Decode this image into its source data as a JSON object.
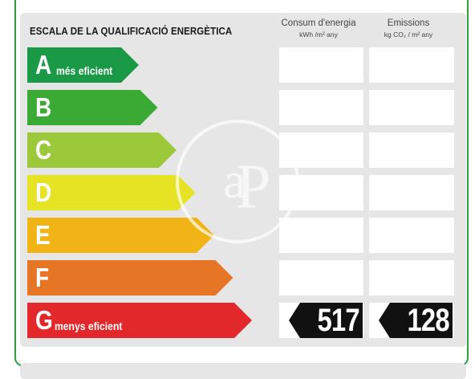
{
  "title": "ESCALA DE LA QUALIFICACIÓ ENERGÈTICA",
  "columns": {
    "consumption": {
      "label": "Consum d'energia",
      "unit": "kWh /m² any"
    },
    "emissions": {
      "label": "Emissions",
      "unit": "kg CO₂ / m² any"
    }
  },
  "ratings": [
    {
      "letter": "A",
      "caption": "més eficient",
      "color": "#1a9a47"
    },
    {
      "letter": "B",
      "caption": "",
      "color": "#3aaa35"
    },
    {
      "letter": "C",
      "caption": "",
      "color": "#9bc93a"
    },
    {
      "letter": "D",
      "caption": "",
      "color": "#e5e323"
    },
    {
      "letter": "E",
      "caption": "",
      "color": "#f1b417"
    },
    {
      "letter": "F",
      "caption": "",
      "color": "#e67526"
    },
    {
      "letter": "G",
      "caption": "menys eficient",
      "color": "#e2282a"
    }
  ],
  "current": {
    "rating": "G",
    "consumption_value": "517",
    "emissions_value": "128",
    "tag_color": "#111111"
  }
}
